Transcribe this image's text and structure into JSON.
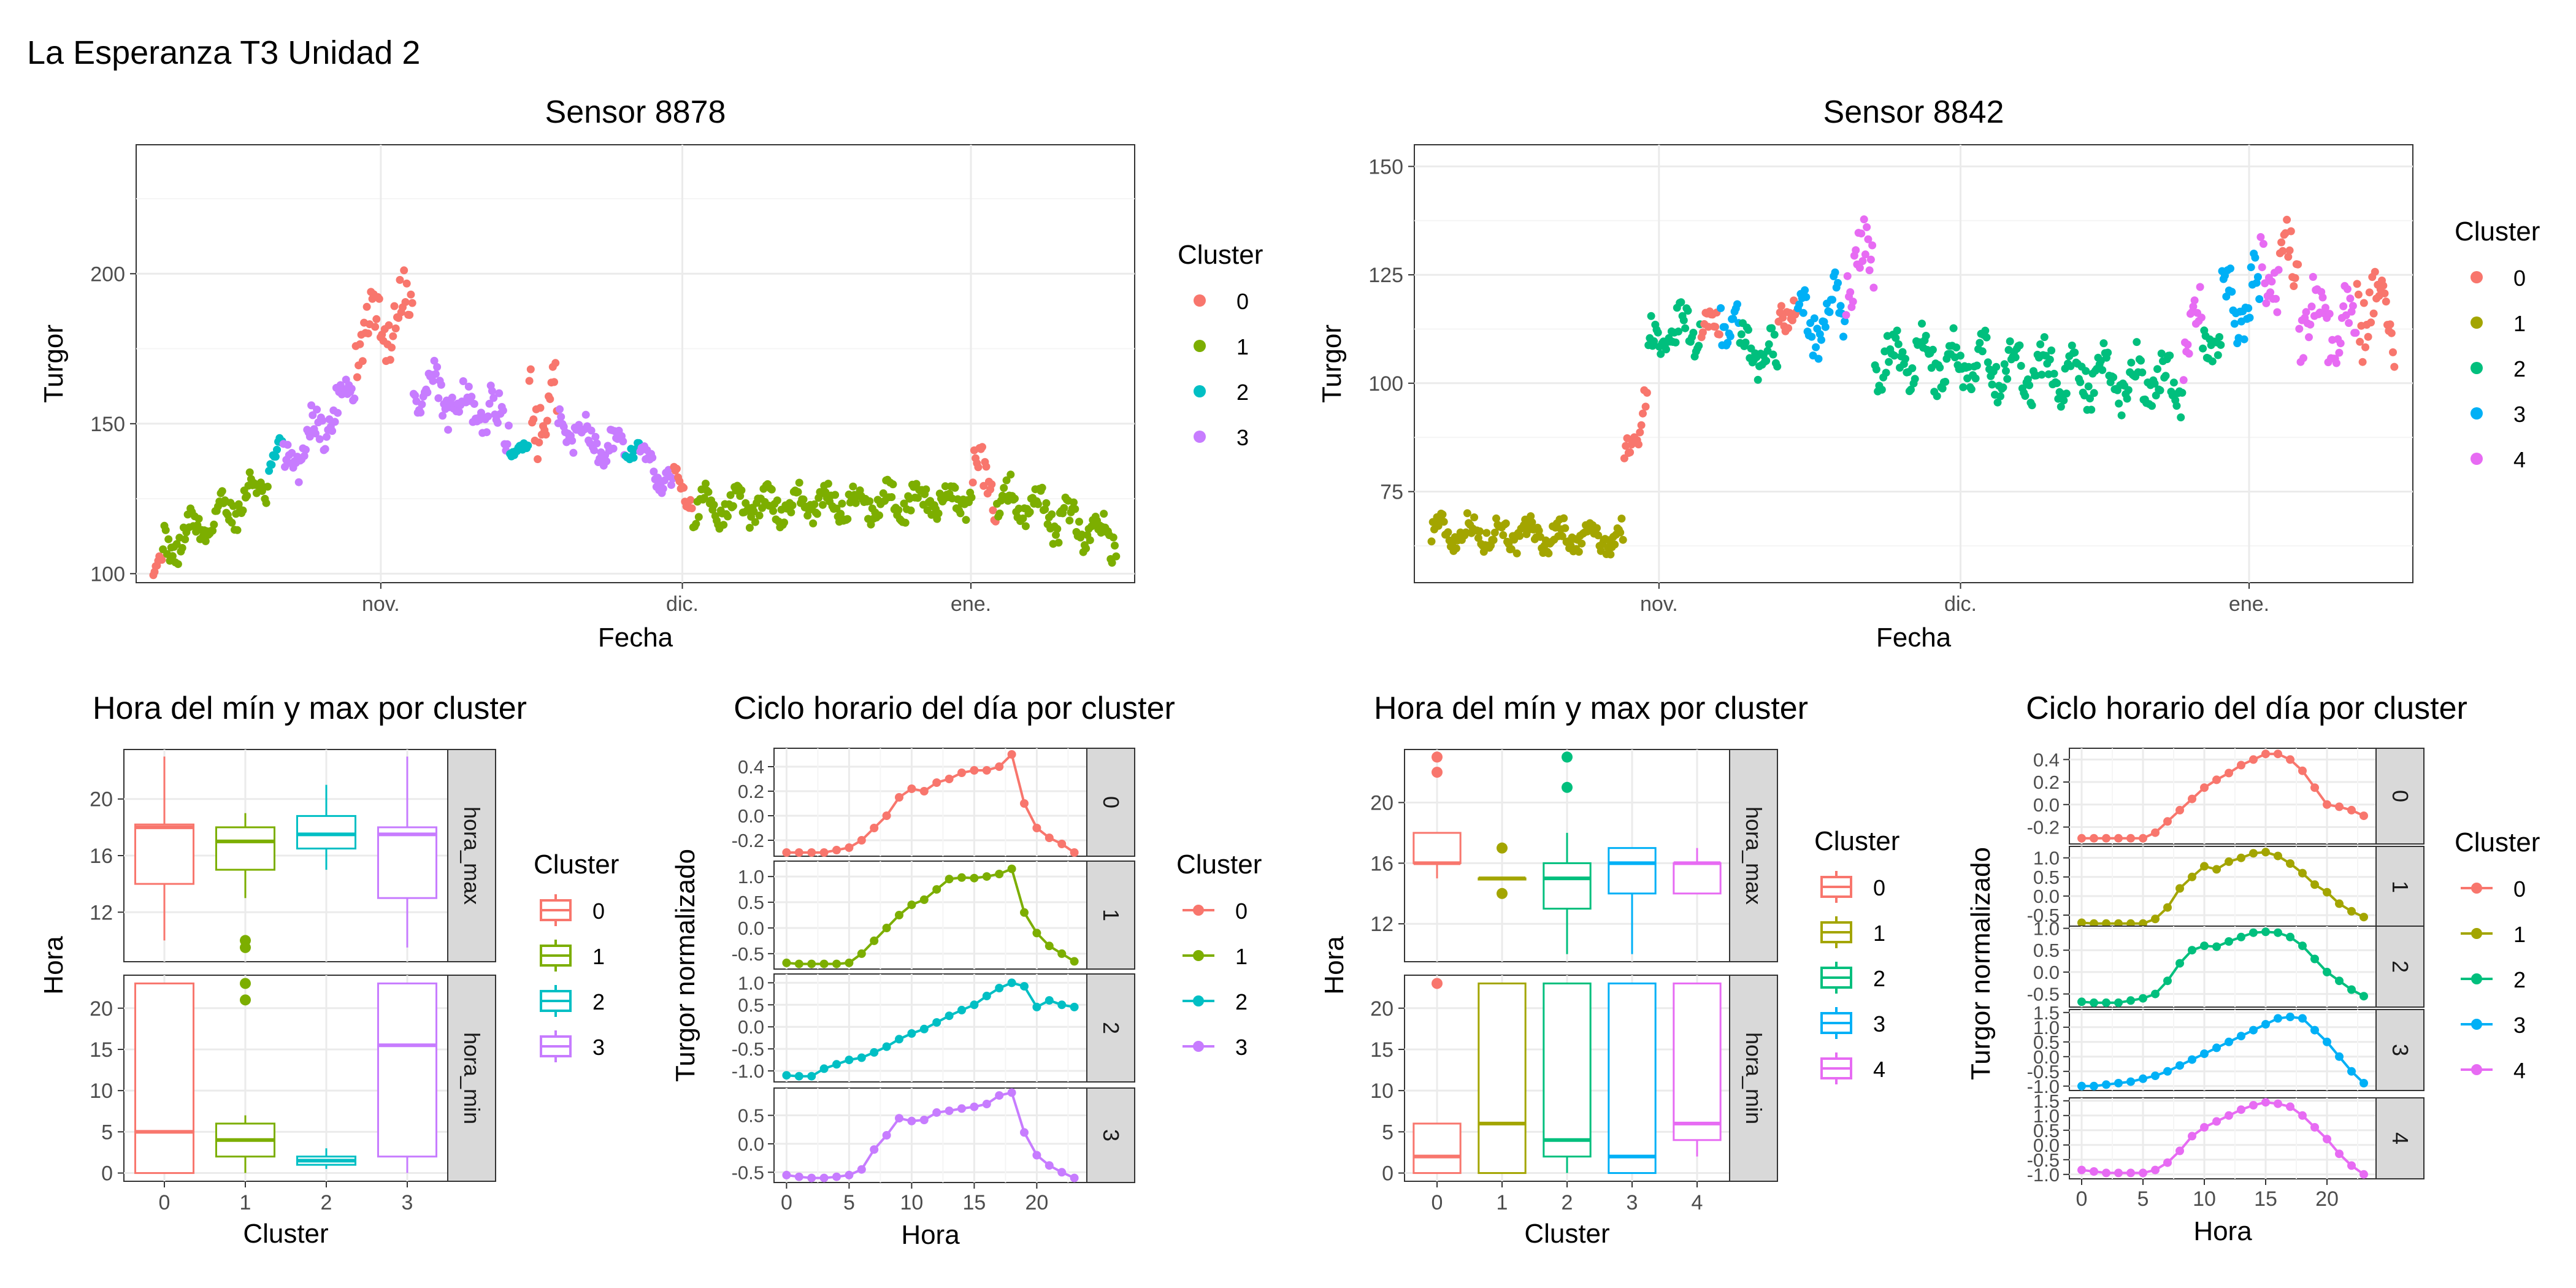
{
  "page_title": "La Esperanza T3 Unidad 2",
  "chart_data": [
    {
      "id": "ts_8878",
      "type": "scatter",
      "title": "Sensor 8878",
      "xlabel": "Fecha",
      "ylabel": "Turgor",
      "x_ticks": [
        "nov.",
        "dic.",
        "ene."
      ],
      "y_ticks": [
        100,
        150,
        200
      ],
      "ylim": [
        97,
        243
      ],
      "legend_title": "Cluster",
      "legend_items": [
        "0",
        "1",
        "2",
        "3"
      ],
      "legend_placement": "right",
      "grid": true,
      "colors": [
        "#F8766D",
        "#7CAE00",
        "#00BFC4",
        "#C77CFF"
      ],
      "segments": [
        {
          "start": 0.0,
          "end": 0.01,
          "cluster": 0,
          "y0": 101,
          "y1": 105,
          "noise": 3
        },
        {
          "start": 0.01,
          "end": 0.12,
          "cluster": 1,
          "y0": 108,
          "y1": 130,
          "noise": 9
        },
        {
          "start": 0.12,
          "end": 0.135,
          "cluster": 2,
          "y0": 136,
          "y1": 144,
          "noise": 4
        },
        {
          "start": 0.135,
          "end": 0.21,
          "cluster": 3,
          "y0": 135,
          "y1": 163,
          "noise": 11
        },
        {
          "start": 0.21,
          "end": 0.27,
          "cluster": 0,
          "y0": 178,
          "y1": 190,
          "noise": 15
        },
        {
          "start": 0.27,
          "end": 0.37,
          "cluster": 3,
          "y0": 162,
          "y1": 150,
          "noise": 12
        },
        {
          "start": 0.37,
          "end": 0.39,
          "cluster": 2,
          "y0": 140,
          "y1": 142,
          "noise": 4
        },
        {
          "start": 0.39,
          "end": 0.42,
          "cluster": 0,
          "y0": 160,
          "y1": 150,
          "noise": 20
        },
        {
          "start": 0.42,
          "end": 0.49,
          "cluster": 3,
          "y0": 150,
          "y1": 140,
          "noise": 9
        },
        {
          "start": 0.49,
          "end": 0.505,
          "cluster": 2,
          "y0": 141,
          "y1": 143,
          "noise": 4
        },
        {
          "start": 0.505,
          "end": 0.54,
          "cluster": 3,
          "y0": 138,
          "y1": 130,
          "noise": 7
        },
        {
          "start": 0.54,
          "end": 0.56,
          "cluster": 0,
          "y0": 130,
          "y1": 128,
          "noise": 8
        },
        {
          "start": 0.56,
          "end": 0.85,
          "cluster": 1,
          "y0": 122,
          "y1": 125,
          "noise": 8
        },
        {
          "start": 0.85,
          "end": 0.875,
          "cluster": 0,
          "y0": 132,
          "y1": 130,
          "noise": 14
        },
        {
          "start": 0.875,
          "end": 1.0,
          "cluster": 1,
          "y0": 125,
          "y1": 112,
          "noise": 10
        }
      ]
    },
    {
      "id": "ts_8842",
      "type": "scatter",
      "title": "Sensor 8842",
      "xlabel": "Fecha",
      "ylabel": "Turgor",
      "x_ticks": [
        "nov.",
        "dic.",
        "ene."
      ],
      "y_ticks": [
        75,
        100,
        125,
        150
      ],
      "ylim": [
        54,
        155
      ],
      "legend_title": "Cluster",
      "legend_items": [
        "0",
        "1",
        "2",
        "3",
        "4"
      ],
      "legend_placement": "right",
      "grid": true,
      "colors": [
        "#F8766D",
        "#A3A500",
        "#00BF7D",
        "#00B0F6",
        "#E76BF3"
      ],
      "segments": [
        {
          "start": 0.0,
          "end": 0.2,
          "cluster": 1,
          "y0": 66,
          "y1": 64,
          "noise": 5
        },
        {
          "start": 0.2,
          "end": 0.225,
          "cluster": 0,
          "y0": 82,
          "y1": 98,
          "noise": 6
        },
        {
          "start": 0.225,
          "end": 0.28,
          "cluster": 2,
          "y0": 108,
          "y1": 114,
          "noise": 8
        },
        {
          "start": 0.28,
          "end": 0.3,
          "cluster": 0,
          "y0": 113,
          "y1": 113,
          "noise": 5
        },
        {
          "start": 0.3,
          "end": 0.32,
          "cluster": 3,
          "y0": 115,
          "y1": 112,
          "noise": 8
        },
        {
          "start": 0.32,
          "end": 0.36,
          "cluster": 2,
          "y0": 108,
          "y1": 105,
          "noise": 8
        },
        {
          "start": 0.36,
          "end": 0.38,
          "cluster": 0,
          "y0": 116,
          "y1": 118,
          "noise": 5
        },
        {
          "start": 0.38,
          "end": 0.43,
          "cluster": 3,
          "y0": 112,
          "y1": 118,
          "noise": 10
        },
        {
          "start": 0.43,
          "end": 0.46,
          "cluster": 4,
          "y0": 125,
          "y1": 130,
          "noise": 10
        },
        {
          "start": 0.46,
          "end": 0.78,
          "cluster": 2,
          "y0": 106,
          "y1": 100,
          "noise": 9
        },
        {
          "start": 0.78,
          "end": 0.8,
          "cluster": 4,
          "y0": 108,
          "y1": 115,
          "noise": 10
        },
        {
          "start": 0.8,
          "end": 0.82,
          "cluster": 2,
          "y0": 110,
          "y1": 110,
          "noise": 6
        },
        {
          "start": 0.82,
          "end": 0.86,
          "cluster": 3,
          "y0": 118,
          "y1": 120,
          "noise": 12
        },
        {
          "start": 0.86,
          "end": 0.88,
          "cluster": 4,
          "y0": 125,
          "y1": 125,
          "noise": 12
        },
        {
          "start": 0.88,
          "end": 0.9,
          "cluster": 0,
          "y0": 130,
          "y1": 125,
          "noise": 12
        },
        {
          "start": 0.9,
          "end": 0.96,
          "cluster": 4,
          "y0": 118,
          "y1": 112,
          "noise": 14
        },
        {
          "start": 0.96,
          "end": 1.0,
          "cluster": 0,
          "y0": 120,
          "y1": 115,
          "noise": 15
        }
      ]
    },
    {
      "id": "box_8878",
      "type": "boxplot",
      "title": "Hora del mín y max por cluster",
      "xlabel": "Cluster",
      "ylabel": "Hora",
      "categories": [
        "0",
        "1",
        "2",
        "3"
      ],
      "legend_title": "Cluster",
      "legend_items": [
        "0",
        "1",
        "2",
        "3"
      ],
      "colors": [
        "#F8766D",
        "#7CAE00",
        "#00BFC4",
        "#C77CFF"
      ],
      "facets": [
        {
          "label": "hora_max",
          "ylim": [
            8.5,
            23.5
          ],
          "y_ticks": [
            12,
            16,
            20
          ],
          "boxes": [
            {
              "q1": 14,
              "med": 18,
              "q3": 18.2,
              "lo": 10,
              "hi": 23,
              "out": []
            },
            {
              "q1": 15,
              "med": 17,
              "q3": 18,
              "lo": 13,
              "hi": 19,
              "out": [
                10,
                9.5
              ]
            },
            {
              "q1": 16.5,
              "med": 17.5,
              "q3": 18.8,
              "lo": 15,
              "hi": 21,
              "out": []
            },
            {
              "q1": 13,
              "med": 17.5,
              "q3": 18,
              "lo": 9.5,
              "hi": 23,
              "out": []
            }
          ]
        },
        {
          "label": "hora_min",
          "ylim": [
            -1,
            24
          ],
          "y_ticks": [
            0,
            5,
            10,
            15,
            20
          ],
          "boxes": [
            {
              "q1": 0,
              "med": 5,
              "q3": 23,
              "lo": 0,
              "hi": 23,
              "out": []
            },
            {
              "q1": 2,
              "med": 4,
              "q3": 6,
              "lo": 0,
              "hi": 7,
              "out": [
                21,
                23
              ]
            },
            {
              "q1": 1,
              "med": 1.5,
              "q3": 2,
              "lo": 0.5,
              "hi": 3,
              "out": []
            },
            {
              "q1": 2,
              "med": 15.5,
              "q3": 23,
              "lo": 0,
              "hi": 23,
              "out": []
            }
          ]
        }
      ]
    },
    {
      "id": "cycle_8878",
      "type": "line",
      "title": "Ciclo horario del día por cluster",
      "xlabel": "Hora",
      "ylabel": "Turgor normalizado",
      "x_ticks": [
        0,
        5,
        10,
        15,
        20
      ],
      "xlim": [
        -1,
        24
      ],
      "legend_title": "Cluster",
      "legend_items": [
        "0",
        "1",
        "2",
        "3"
      ],
      "colors": [
        "#F8766D",
        "#7CAE00",
        "#00BFC4",
        "#C77CFF"
      ],
      "facets": [
        {
          "label": "0",
          "ylim": [
            -0.33,
            0.55
          ],
          "y_ticks": [
            "0.4",
            "0.2",
            "0.0",
            "-0.2"
          ],
          "values": [
            -0.3,
            -0.3,
            -0.3,
            -0.3,
            -0.28,
            -0.26,
            -0.2,
            -0.1,
            0.0,
            0.15,
            0.22,
            0.2,
            0.27,
            0.3,
            0.35,
            0.37,
            0.37,
            0.4,
            0.5,
            0.1,
            -0.1,
            -0.18,
            -0.23,
            -0.3
          ]
        },
        {
          "label": "1",
          "ylim": [
            -0.8,
            1.3
          ],
          "y_ticks": [
            "1.0",
            "0.5",
            "0.0",
            "-0.5"
          ],
          "values": [
            -0.68,
            -0.7,
            -0.7,
            -0.7,
            -0.7,
            -0.68,
            -0.5,
            -0.25,
            0.0,
            0.25,
            0.45,
            0.55,
            0.75,
            0.95,
            0.98,
            0.97,
            1.0,
            1.05,
            1.15,
            0.3,
            -0.1,
            -0.35,
            -0.5,
            -0.65
          ]
        },
        {
          "label": "2",
          "ylim": [
            -1.25,
            1.2
          ],
          "y_ticks": [
            "1.0",
            "0.5",
            "0.0",
            "-0.5",
            "-1.0"
          ],
          "values": [
            -1.1,
            -1.12,
            -1.12,
            -0.95,
            -0.85,
            -0.75,
            -0.7,
            -0.58,
            -0.45,
            -0.28,
            -0.15,
            -0.05,
            0.1,
            0.25,
            0.38,
            0.5,
            0.7,
            0.88,
            1.0,
            0.92,
            0.45,
            0.6,
            0.5,
            0.45
          ]
        },
        {
          "label": "3",
          "ylim": [
            -0.68,
            0.98
          ],
          "y_ticks": [
            "0.5",
            "0.0",
            "-0.5"
          ],
          "values": [
            -0.55,
            -0.58,
            -0.6,
            -0.6,
            -0.58,
            -0.55,
            -0.45,
            -0.1,
            0.15,
            0.45,
            0.4,
            0.42,
            0.55,
            0.58,
            0.62,
            0.65,
            0.7,
            0.85,
            0.9,
            0.2,
            -0.2,
            -0.38,
            -0.5,
            -0.6
          ]
        }
      ]
    },
    {
      "id": "box_8842",
      "type": "boxplot",
      "title": "Hora del mín y max por cluster",
      "xlabel": "Cluster",
      "ylabel": "Hora",
      "categories": [
        "0",
        "1",
        "2",
        "3",
        "4"
      ],
      "legend_title": "Cluster",
      "legend_items": [
        "0",
        "1",
        "2",
        "3",
        "4"
      ],
      "colors": [
        "#F8766D",
        "#A3A500",
        "#00BF7D",
        "#00B0F6",
        "#E76BF3"
      ],
      "facets": [
        {
          "label": "hora_max",
          "ylim": [
            9.5,
            23.5
          ],
          "y_ticks": [
            12,
            16,
            20
          ],
          "boxes": [
            {
              "q1": 16,
              "med": 16,
              "q3": 18,
              "lo": 15,
              "hi": 18,
              "out": [
                22,
                23
              ]
            },
            {
              "q1": 15,
              "med": 15,
              "q3": 15,
              "lo": 15,
              "hi": 15,
              "out": [
                14,
                17
              ]
            },
            {
              "q1": 13,
              "med": 15,
              "q3": 16,
              "lo": 10,
              "hi": 18,
              "out": [
                21,
                23
              ]
            },
            {
              "q1": 14,
              "med": 16,
              "q3": 17,
              "lo": 10,
              "hi": 17,
              "out": []
            },
            {
              "q1": 14,
              "med": 16,
              "q3": 16,
              "lo": 14,
              "hi": 17,
              "out": []
            }
          ]
        },
        {
          "label": "hora_min",
          "ylim": [
            -1,
            24
          ],
          "y_ticks": [
            0,
            5,
            10,
            15,
            20
          ],
          "boxes": [
            {
              "q1": 0,
              "med": 2,
              "q3": 6,
              "lo": 0,
              "hi": 6,
              "out": [
                23
              ]
            },
            {
              "q1": 0,
              "med": 6,
              "q3": 23,
              "lo": 0,
              "hi": 23,
              "out": []
            },
            {
              "q1": 2,
              "med": 4,
              "q3": 23,
              "lo": 0,
              "hi": 23,
              "out": []
            },
            {
              "q1": 0,
              "med": 2,
              "q3": 23,
              "lo": 0,
              "hi": 23,
              "out": []
            },
            {
              "q1": 4,
              "med": 6,
              "q3": 23,
              "lo": 2,
              "hi": 23,
              "out": []
            }
          ]
        }
      ]
    },
    {
      "id": "cycle_8842",
      "type": "line",
      "title": "Ciclo horario del día por cluster",
      "xlabel": "Hora",
      "ylabel": "Turgor normalizado",
      "x_ticks": [
        0,
        5,
        10,
        15,
        20
      ],
      "xlim": [
        -1,
        24
      ],
      "legend_title": "Cluster",
      "legend_items": [
        "0",
        "1",
        "2",
        "3",
        "4"
      ],
      "colors": [
        "#F8766D",
        "#A3A500",
        "#00BF7D",
        "#00B0F6",
        "#E76BF3"
      ],
      "facets": [
        {
          "label": "0",
          "ylim": [
            -0.35,
            0.5
          ],
          "y_ticks": [
            "0.4",
            "0.2",
            "0.0",
            "-0.2"
          ],
          "values": [
            -0.3,
            -0.3,
            -0.3,
            -0.3,
            -0.3,
            -0.3,
            -0.25,
            -0.15,
            -0.05,
            0.05,
            0.15,
            0.22,
            0.28,
            0.35,
            0.4,
            0.45,
            0.45,
            0.4,
            0.3,
            0.15,
            0.0,
            -0.02,
            -0.05,
            -0.1
          ]
        },
        {
          "label": "1",
          "ylim": [
            -0.82,
            1.3
          ],
          "y_ticks": [
            "1.0",
            "0.5",
            "0.0",
            "-0.5"
          ],
          "values": [
            -0.7,
            -0.72,
            -0.72,
            -0.72,
            -0.72,
            -0.72,
            -0.6,
            -0.3,
            0.2,
            0.5,
            0.78,
            0.7,
            0.9,
            1.0,
            1.12,
            1.15,
            1.05,
            0.85,
            0.6,
            0.3,
            0.1,
            -0.2,
            -0.4,
            -0.55
          ]
        },
        {
          "label": "2",
          "ylim": [
            -0.8,
            1.05
          ],
          "y_ticks": [
            "1.0",
            "0.5",
            "0.0",
            "-0.5"
          ],
          "values": [
            -0.68,
            -0.7,
            -0.7,
            -0.7,
            -0.65,
            -0.6,
            -0.5,
            -0.2,
            0.2,
            0.5,
            0.6,
            0.58,
            0.7,
            0.8,
            0.9,
            0.92,
            0.9,
            0.8,
            0.6,
            0.3,
            0.0,
            -0.2,
            -0.4,
            -0.55
          ]
        },
        {
          "label": "3",
          "ylim": [
            -1.15,
            1.6
          ],
          "y_ticks": [
            "1.5",
            "1.0",
            "0.5",
            "0.0",
            "-0.5",
            "-1.0"
          ],
          "values": [
            -1.0,
            -1.0,
            -0.95,
            -0.9,
            -0.85,
            -0.75,
            -0.65,
            -0.5,
            -0.3,
            -0.1,
            0.1,
            0.3,
            0.5,
            0.7,
            0.9,
            1.1,
            1.3,
            1.35,
            1.3,
            0.9,
            0.5,
            0.0,
            -0.5,
            -0.9
          ]
        },
        {
          "label": "4",
          "ylim": [
            -1.15,
            1.6
          ],
          "y_ticks": [
            "1.5",
            "1.0",
            "0.5",
            "0.0",
            "-0.5",
            "-1.0"
          ],
          "values": [
            -0.85,
            -0.9,
            -0.95,
            -0.95,
            -0.95,
            -0.95,
            -0.85,
            -0.6,
            -0.2,
            0.3,
            0.6,
            0.8,
            1.0,
            1.2,
            1.35,
            1.45,
            1.4,
            1.3,
            1.0,
            0.6,
            0.2,
            -0.3,
            -0.7,
            -1.0
          ]
        }
      ]
    }
  ]
}
